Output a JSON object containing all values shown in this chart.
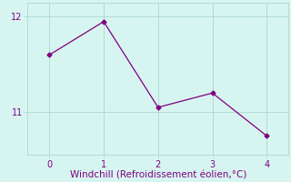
{
  "x": [
    0,
    1,
    2,
    3,
    4
  ],
  "y": [
    11.6,
    11.95,
    11.05,
    11.2,
    10.75
  ],
  "line_color": "#800080",
  "marker": "D",
  "marker_size": 2.5,
  "background_color": "#d6f5f0",
  "grid_color": "#aad8d0",
  "xlabel": "Windchill (Refroidissement éolien,°C)",
  "xlabel_color": "#800080",
  "xlabel_fontsize": 7.5,
  "tick_color": "#800080",
  "tick_fontsize": 7,
  "ylim": [
    10.55,
    12.15
  ],
  "xlim": [
    -0.4,
    4.4
  ],
  "yticks": [
    11,
    12
  ],
  "xticks": [
    0,
    1,
    2,
    3,
    4
  ]
}
